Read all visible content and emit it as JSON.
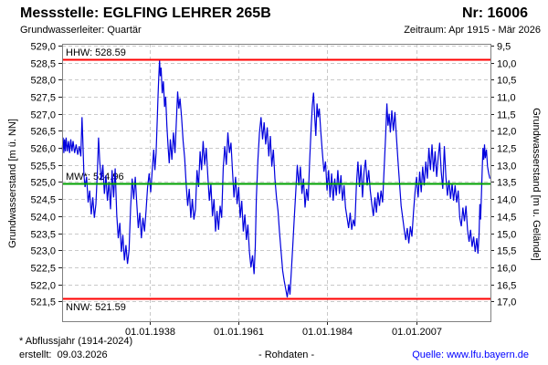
{
  "header": {
    "title": "Messstelle: EGLFING LEHRER 265B",
    "number": "Nr: 16006",
    "aquifer": "Grundwasserleiter: Quartär",
    "period": "Zeitraum: Apr 1915 - Mär 2026"
  },
  "footer": {
    "footnote": "* Abflussjahr (1914-2024)",
    "created": "erstellt:  09.03.2026",
    "center_label": "- Rohdaten -",
    "source": "Quelle: www.lfu.bayern.de",
    "source_color": "#0000ff"
  },
  "chart_data": {
    "type": "line",
    "title": "",
    "xlabel": "",
    "ylabel_left": "Grundwasserstand [m ü. NN]",
    "ylabel_right": "Grundwasserstand [m u. Gelände]",
    "legend": "none",
    "grid": true,
    "line_color": "#0000dd",
    "grid_color": "#c9c9c9",
    "border_color": "#808080",
    "tick_color": "#222222",
    "xlim": [
      1915.25,
      2026.25
    ],
    "ylim_left": [
      520.92,
      529.05
    ],
    "ylim_right_offset": 538.5,
    "x_ticks": [
      {
        "v": 1938.0,
        "label": "01.01.1938"
      },
      {
        "v": 1961.0,
        "label": "01.01.1961"
      },
      {
        "v": 1984.0,
        "label": "01.01.1984"
      },
      {
        "v": 2007.0,
        "label": "01.01.2007"
      }
    ],
    "y_ticks": [
      {
        "v": 529.0,
        "left": "529,0",
        "right": "9,5"
      },
      {
        "v": 528.5,
        "left": "528,5",
        "right": "10,0"
      },
      {
        "v": 528.0,
        "left": "528,0",
        "right": "10,5"
      },
      {
        "v": 527.5,
        "left": "527,5",
        "right": "11,0"
      },
      {
        "v": 527.0,
        "left": "527,0",
        "right": "11,5"
      },
      {
        "v": 526.5,
        "left": "526,5",
        "right": "12,0"
      },
      {
        "v": 526.0,
        "left": "526,0",
        "right": "12,5"
      },
      {
        "v": 525.5,
        "left": "525,5",
        "right": "13,0"
      },
      {
        "v": 525.0,
        "left": "525,0",
        "right": "13,5"
      },
      {
        "v": 524.5,
        "left": "524,5",
        "right": "14,0"
      },
      {
        "v": 524.0,
        "left": "524,0",
        "right": "14,5"
      },
      {
        "v": 523.5,
        "left": "523,5",
        "right": "15,0"
      },
      {
        "v": 523.0,
        "left": "523,0",
        "right": "15,5"
      },
      {
        "v": 522.5,
        "left": "522,5",
        "right": "16,0"
      },
      {
        "v": 522.0,
        "left": "522,0",
        "right": "16,5"
      },
      {
        "v": 521.5,
        "left": "521,5",
        "right": "17,0"
      }
    ],
    "ref_lines": [
      {
        "name": "hhw",
        "label": "HHW: 528.59",
        "value": 528.59,
        "color": "#ff0000",
        "label_side": "above"
      },
      {
        "name": "mw",
        "label": "MW*: 524.96",
        "value": 524.96,
        "color": "#00a000",
        "label_side": "above"
      },
      {
        "name": "nnw",
        "label": "NNW: 521.59",
        "value": 521.59,
        "color": "#ff0000",
        "label_side": "below"
      }
    ],
    "series_name": "Grundwasserstand Rohdaten",
    "points": [
      [
        1915.3,
        525.95
      ],
      [
        1915.5,
        526.3
      ],
      [
        1915.7,
        525.85
      ],
      [
        1915.9,
        526.25
      ],
      [
        1916.1,
        525.9
      ],
      [
        1916.3,
        526.3
      ],
      [
        1916.6,
        525.9
      ],
      [
        1916.9,
        526.2
      ],
      [
        1917.2,
        525.85
      ],
      [
        1917.5,
        526.25
      ],
      [
        1917.8,
        525.9
      ],
      [
        1918.1,
        526.2
      ],
      [
        1918.5,
        525.85
      ],
      [
        1918.9,
        526.1
      ],
      [
        1919.3,
        525.8
      ],
      [
        1919.7,
        526.05
      ],
      [
        1920.1,
        525.75
      ],
      [
        1920.4,
        526.9
      ],
      [
        1920.6,
        526.3
      ],
      [
        1920.9,
        525.2
      ],
      [
        1921.2,
        524.85
      ],
      [
        1921.6,
        525.15
      ],
      [
        1922.0,
        524.4
      ],
      [
        1922.4,
        524.75
      ],
      [
        1922.8,
        524.05
      ],
      [
        1923.2,
        524.55
      ],
      [
        1923.6,
        523.95
      ],
      [
        1924.0,
        524.35
      ],
      [
        1924.4,
        525.35
      ],
      [
        1924.7,
        526.3
      ],
      [
        1925.0,
        525.6
      ],
      [
        1925.4,
        525.05
      ],
      [
        1925.8,
        525.5
      ],
      [
        1926.2,
        524.65
      ],
      [
        1926.6,
        525.2
      ],
      [
        1927.0,
        524.45
      ],
      [
        1927.4,
        525.0
      ],
      [
        1927.8,
        524.2
      ],
      [
        1928.2,
        525.35
      ],
      [
        1928.6,
        524.55
      ],
      [
        1929.0,
        525.4
      ],
      [
        1929.4,
        524.05
      ],
      [
        1929.8,
        523.35
      ],
      [
        1930.2,
        523.8
      ],
      [
        1930.6,
        522.95
      ],
      [
        1931.0,
        523.45
      ],
      [
        1931.4,
        522.7
      ],
      [
        1931.8,
        523.15
      ],
      [
        1932.2,
        522.6
      ],
      [
        1932.6,
        523.0
      ],
      [
        1933.0,
        524.25
      ],
      [
        1933.4,
        525.1
      ],
      [
        1933.8,
        524.5
      ],
      [
        1934.2,
        525.15
      ],
      [
        1934.6,
        524.35
      ],
      [
        1935.0,
        523.65
      ],
      [
        1935.4,
        524.1
      ],
      [
        1935.8,
        523.35
      ],
      [
        1936.2,
        523.95
      ],
      [
        1936.6,
        523.55
      ],
      [
        1937.0,
        524.15
      ],
      [
        1937.4,
        524.85
      ],
      [
        1937.8,
        525.25
      ],
      [
        1938.2,
        524.7
      ],
      [
        1938.6,
        525.35
      ],
      [
        1939.0,
        525.95
      ],
      [
        1939.3,
        525.35
      ],
      [
        1939.6,
        525.85
      ],
      [
        1939.9,
        526.85
      ],
      [
        1940.1,
        527.5
      ],
      [
        1940.3,
        528.05
      ],
      [
        1940.5,
        528.57
      ],
      [
        1940.7,
        528.1
      ],
      [
        1940.9,
        528.35
      ],
      [
        1941.2,
        527.6
      ],
      [
        1941.5,
        527.95
      ],
      [
        1941.8,
        527.2
      ],
      [
        1942.1,
        527.5
      ],
      [
        1942.4,
        526.65
      ],
      [
        1942.7,
        526.05
      ],
      [
        1943.0,
        525.55
      ],
      [
        1943.3,
        526.25
      ],
      [
        1943.7,
        525.65
      ],
      [
        1944.1,
        526.45
      ],
      [
        1944.5,
        525.85
      ],
      [
        1944.9,
        526.9
      ],
      [
        1945.2,
        527.65
      ],
      [
        1945.5,
        527.15
      ],
      [
        1945.8,
        527.45
      ],
      [
        1946.2,
        526.9
      ],
      [
        1946.6,
        526.2
      ],
      [
        1947.0,
        525.7
      ],
      [
        1947.4,
        524.95
      ],
      [
        1947.8,
        524.3
      ],
      [
        1948.2,
        524.8
      ],
      [
        1948.6,
        523.95
      ],
      [
        1949.0,
        524.5
      ],
      [
        1949.4,
        523.9
      ],
      [
        1949.8,
        524.2
      ],
      [
        1950.2,
        525.35
      ],
      [
        1950.6,
        524.85
      ],
      [
        1951.0,
        525.9
      ],
      [
        1951.4,
        525.35
      ],
      [
        1951.8,
        526.2
      ],
      [
        1952.2,
        525.5
      ],
      [
        1952.6,
        526.0
      ],
      [
        1953.0,
        525.2
      ],
      [
        1953.4,
        524.45
      ],
      [
        1953.8,
        524.95
      ],
      [
        1954.2,
        524.0
      ],
      [
        1954.6,
        524.5
      ],
      [
        1955.0,
        523.55
      ],
      [
        1955.4,
        524.15
      ],
      [
        1955.8,
        523.6
      ],
      [
        1956.2,
        524.3
      ],
      [
        1956.6,
        523.95
      ],
      [
        1957.0,
        525.4
      ],
      [
        1957.4,
        526.05
      ],
      [
        1957.8,
        525.5
      ],
      [
        1958.2,
        526.45
      ],
      [
        1958.6,
        525.85
      ],
      [
        1959.0,
        526.15
      ],
      [
        1959.4,
        525.35
      ],
      [
        1959.8,
        524.55
      ],
      [
        1960.2,
        525.15
      ],
      [
        1960.6,
        524.35
      ],
      [
        1961.0,
        524.85
      ],
      [
        1961.4,
        523.95
      ],
      [
        1961.8,
        524.45
      ],
      [
        1962.2,
        523.55
      ],
      [
        1962.6,
        524.05
      ],
      [
        1963.0,
        523.3
      ],
      [
        1963.4,
        523.75
      ],
      [
        1963.8,
        522.95
      ],
      [
        1964.2,
        522.5
      ],
      [
        1964.6,
        522.85
      ],
      [
        1965.0,
        522.3
      ],
      [
        1965.3,
        523.1
      ],
      [
        1965.6,
        524.55
      ],
      [
        1966.0,
        525.65
      ],
      [
        1966.4,
        526.45
      ],
      [
        1966.8,
        526.9
      ],
      [
        1967.2,
        526.25
      ],
      [
        1967.6,
        526.75
      ],
      [
        1968.0,
        526.1
      ],
      [
        1968.4,
        526.6
      ],
      [
        1968.8,
        525.75
      ],
      [
        1969.2,
        526.35
      ],
      [
        1969.6,
        525.45
      ],
      [
        1970.0,
        525.95
      ],
      [
        1970.4,
        525.1
      ],
      [
        1970.8,
        524.55
      ],
      [
        1971.2,
        524.15
      ],
      [
        1971.6,
        523.5
      ],
      [
        1972.0,
        522.95
      ],
      [
        1972.4,
        522.4
      ],
      [
        1972.8,
        522.1
      ],
      [
        1973.2,
        521.85
      ],
      [
        1973.6,
        521.62
      ],
      [
        1974.0,
        522.0
      ],
      [
        1974.3,
        521.7
      ],
      [
        1974.6,
        522.3
      ],
      [
        1975.0,
        523.1
      ],
      [
        1975.4,
        523.9
      ],
      [
        1975.8,
        524.7
      ],
      [
        1976.2,
        525.5
      ],
      [
        1976.6,
        524.9
      ],
      [
        1977.0,
        525.45
      ],
      [
        1977.4,
        524.65
      ],
      [
        1977.8,
        525.1
      ],
      [
        1978.2,
        524.25
      ],
      [
        1978.6,
        524.8
      ],
      [
        1979.0,
        524.45
      ],
      [
        1979.4,
        525.6
      ],
      [
        1979.8,
        526.6
      ],
      [
        1980.1,
        527.25
      ],
      [
        1980.4,
        527.62
      ],
      [
        1980.7,
        526.95
      ],
      [
        1981.0,
        526.35
      ],
      [
        1981.3,
        527.3
      ],
      [
        1981.6,
        526.9
      ],
      [
        1981.9,
        527.15
      ],
      [
        1982.3,
        526.45
      ],
      [
        1982.7,
        525.85
      ],
      [
        1983.1,
        525.3
      ],
      [
        1983.5,
        525.6
      ],
      [
        1983.9,
        524.75
      ],
      [
        1984.3,
        525.35
      ],
      [
        1984.7,
        524.55
      ],
      [
        1985.1,
        525.25
      ],
      [
        1985.5,
        524.45
      ],
      [
        1985.9,
        525.1
      ],
      [
        1986.3,
        524.6
      ],
      [
        1986.7,
        525.35
      ],
      [
        1987.1,
        524.65
      ],
      [
        1987.5,
        525.2
      ],
      [
        1987.9,
        524.45
      ],
      [
        1988.3,
        524.9
      ],
      [
        1988.7,
        524.25
      ],
      [
        1989.1,
        523.95
      ],
      [
        1989.5,
        523.65
      ],
      [
        1989.9,
        524.1
      ],
      [
        1990.3,
        523.6
      ],
      [
        1990.7,
        523.9
      ],
      [
        1991.1,
        523.7
      ],
      [
        1991.5,
        524.9
      ],
      [
        1991.9,
        525.6
      ],
      [
        1992.3,
        524.85
      ],
      [
        1992.7,
        525.5
      ],
      [
        1993.1,
        524.55
      ],
      [
        1993.5,
        525.3
      ],
      [
        1993.9,
        525.65
      ],
      [
        1994.3,
        524.9
      ],
      [
        1994.7,
        525.35
      ],
      [
        1995.1,
        524.75
      ],
      [
        1995.5,
        524.35
      ],
      [
        1995.9,
        524.0
      ],
      [
        1996.3,
        524.55
      ],
      [
        1996.7,
        524.1
      ],
      [
        1997.1,
        524.7
      ],
      [
        1997.5,
        524.3
      ],
      [
        1997.9,
        524.75
      ],
      [
        1998.3,
        524.4
      ],
      [
        1998.7,
        525.4
      ],
      [
        1999.1,
        526.4
      ],
      [
        1999.4,
        527.3
      ],
      [
        1999.7,
        526.65
      ],
      [
        2000.0,
        527.0
      ],
      [
        2000.3,
        526.45
      ],
      [
        2000.7,
        527.1
      ],
      [
        2001.1,
        526.5
      ],
      [
        2001.5,
        527.05
      ],
      [
        2001.9,
        526.3
      ],
      [
        2002.3,
        525.6
      ],
      [
        2002.7,
        524.95
      ],
      [
        2003.1,
        524.3
      ],
      [
        2003.5,
        523.95
      ],
      [
        2003.9,
        523.6
      ],
      [
        2004.3,
        523.3
      ],
      [
        2004.7,
        523.65
      ],
      [
        2005.1,
        523.2
      ],
      [
        2005.5,
        523.7
      ],
      [
        2005.9,
        523.4
      ],
      [
        2006.3,
        524.1
      ],
      [
        2006.7,
        524.7
      ],
      [
        2007.1,
        525.15
      ],
      [
        2007.5,
        524.55
      ],
      [
        2007.9,
        525.3
      ],
      [
        2008.3,
        524.7
      ],
      [
        2008.7,
        525.45
      ],
      [
        2009.1,
        524.9
      ],
      [
        2009.5,
        525.6
      ],
      [
        2009.9,
        525.1
      ],
      [
        2010.3,
        526.0
      ],
      [
        2010.7,
        525.35
      ],
      [
        2011.1,
        526.1
      ],
      [
        2011.5,
        525.3
      ],
      [
        2011.9,
        525.9
      ],
      [
        2012.3,
        525.15
      ],
      [
        2012.7,
        525.7
      ],
      [
        2013.1,
        526.15
      ],
      [
        2013.5,
        525.3
      ],
      [
        2013.9,
        524.8
      ],
      [
        2014.3,
        526.05
      ],
      [
        2014.7,
        525.15
      ],
      [
        2015.1,
        524.6
      ],
      [
        2015.5,
        525.05
      ],
      [
        2015.9,
        524.5
      ],
      [
        2016.3,
        524.95
      ],
      [
        2016.7,
        524.45
      ],
      [
        2017.1,
        524.9
      ],
      [
        2017.5,
        524.4
      ],
      [
        2017.9,
        524.75
      ],
      [
        2018.3,
        523.95
      ],
      [
        2018.7,
        523.7
      ],
      [
        2019.1,
        524.25
      ],
      [
        2019.5,
        523.85
      ],
      [
        2019.9,
        524.3
      ],
      [
        2020.3,
        523.6
      ],
      [
        2020.7,
        523.25
      ],
      [
        2021.1,
        523.6
      ],
      [
        2021.5,
        523.1
      ],
      [
        2021.9,
        523.4
      ],
      [
        2022.3,
        522.95
      ],
      [
        2022.7,
        523.35
      ],
      [
        2023.0,
        522.9
      ],
      [
        2023.3,
        523.45
      ],
      [
        2023.5,
        524.35
      ],
      [
        2023.7,
        523.9
      ],
      [
        2023.9,
        524.6
      ],
      [
        2024.1,
        525.3
      ],
      [
        2024.3,
        526.0
      ],
      [
        2024.5,
        525.65
      ],
      [
        2024.7,
        526.1
      ],
      [
        2024.9,
        525.7
      ],
      [
        2025.2,
        525.95
      ],
      [
        2025.5,
        525.45
      ],
      [
        2025.8,
        525.25
      ],
      [
        2026.1,
        525.1
      ]
    ]
  }
}
